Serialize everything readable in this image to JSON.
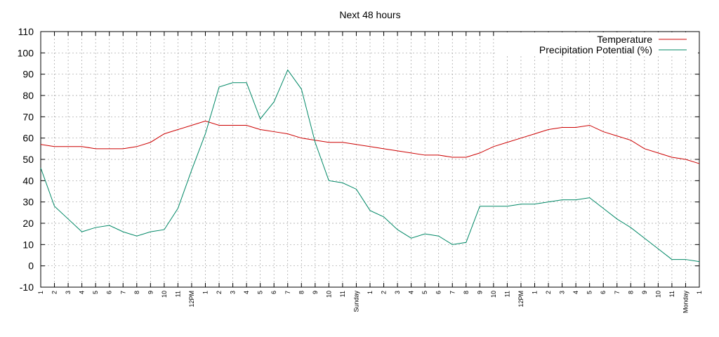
{
  "chart_data": {
    "type": "line",
    "title": "Next 48 hours",
    "categories": [
      "1",
      "2",
      "3",
      "4",
      "5",
      "6",
      "7",
      "8",
      "9",
      "10",
      "11",
      "12PM",
      "1",
      "2",
      "3",
      "4",
      "5",
      "6",
      "7",
      "8",
      "9",
      "10",
      "11",
      "Sunday",
      "1",
      "2",
      "3",
      "4",
      "5",
      "6",
      "7",
      "8",
      "9",
      "10",
      "11",
      "12PM",
      "1",
      "2",
      "3",
      "4",
      "5",
      "6",
      "7",
      "8",
      "9",
      "10",
      "11",
      "Monday",
      "1"
    ],
    "series": [
      {
        "name": "Temperature",
        "color": "#cc0000",
        "values": [
          57,
          56,
          56,
          56,
          55,
          55,
          55,
          56,
          58,
          62,
          64,
          66,
          68,
          66,
          66,
          66,
          64,
          63,
          62,
          60,
          59,
          58,
          58,
          57,
          56,
          55,
          54,
          53,
          52,
          52,
          51,
          51,
          53,
          56,
          58,
          60,
          62,
          64,
          65,
          65,
          66,
          63,
          61,
          59,
          55,
          53,
          51,
          50,
          48
        ]
      },
      {
        "name": "Precipitation Potential (%)",
        "color": "#008866",
        "values": [
          46,
          28,
          22,
          16,
          18,
          19,
          16,
          14,
          16,
          17,
          27,
          45,
          62,
          84,
          86,
          86,
          69,
          77,
          92,
          83,
          58,
          40,
          39,
          36,
          26,
          23,
          17,
          13,
          15,
          14,
          10,
          11,
          28,
          28,
          28,
          29,
          29,
          30,
          31,
          31,
          32,
          27,
          22,
          18,
          13,
          8,
          3,
          3,
          2
        ]
      }
    ],
    "ylim": [
      -10,
      110
    ],
    "yticks": [
      -10,
      0,
      10,
      20,
      30,
      40,
      50,
      60,
      70,
      80,
      90,
      100,
      110
    ],
    "grid": true,
    "legend": "top right"
  }
}
